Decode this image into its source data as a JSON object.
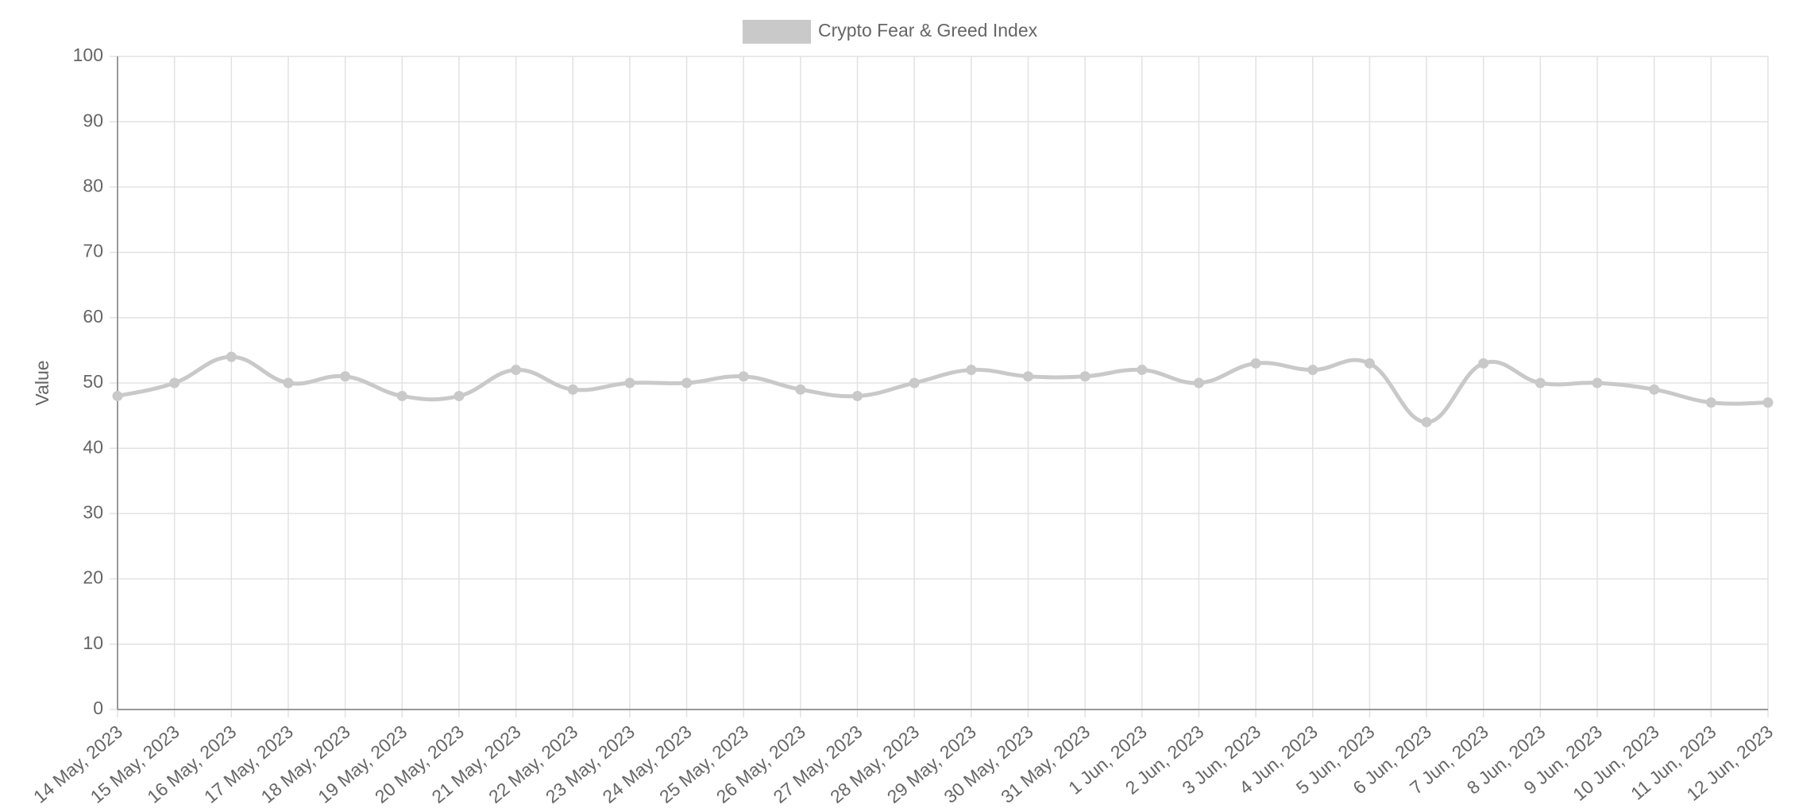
{
  "chart_data": {
    "type": "line",
    "y_label": "Value",
    "categories": [
      "14 May, 2023",
      "15 May, 2023",
      "16 May, 2023",
      "17 May, 2023",
      "18 May, 2023",
      "19 May, 2023",
      "20 May, 2023",
      "21 May, 2023",
      "22 May, 2023",
      "23 May, 2023",
      "24 May, 2023",
      "25 May, 2023",
      "26 May, 2023",
      "27 May, 2023",
      "28 May, 2023",
      "29 May, 2023",
      "30 May, 2023",
      "31 May, 2023",
      "1 Jun, 2023",
      "2 Jun, 2023",
      "3 Jun, 2023",
      "4 Jun, 2023",
      "5 Jun, 2023",
      "6 Jun, 2023",
      "7 Jun, 2023",
      "8 Jun, 2023",
      "9 Jun, 2023",
      "10 Jun, 2023",
      "11 Jun, 2023",
      "12 Jun, 2023"
    ],
    "series": [
      {
        "name": "Crypto Fear & Greed Index",
        "color": "#c9c9c9",
        "values": [
          48,
          50,
          54,
          50,
          51,
          48,
          48,
          52,
          49,
          50,
          50,
          51,
          49,
          48,
          50,
          52,
          51,
          51,
          52,
          50,
          53,
          52,
          53,
          44,
          53,
          50,
          50,
          49,
          47,
          47
        ]
      }
    ],
    "ylim": [
      0,
      100
    ],
    "yticks": [
      0,
      10,
      20,
      30,
      40,
      50,
      60,
      70,
      80,
      90,
      100
    ],
    "grid": true,
    "legend": "top"
  }
}
